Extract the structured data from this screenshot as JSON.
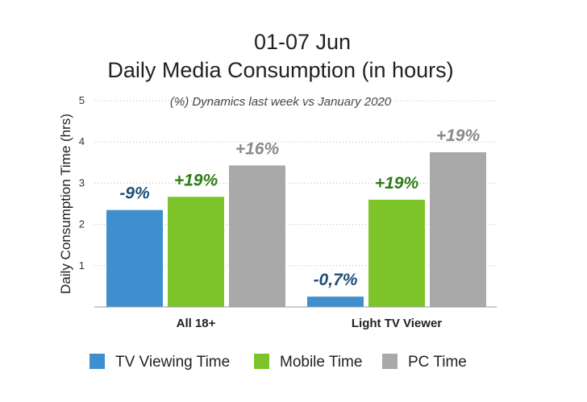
{
  "chart_data": {
    "type": "bar",
    "title_lines": [
      "01-07 Jun",
      "Daily Media Consumption (in hours)"
    ],
    "subtitle": "(%) Dynamics last week  vs January 2020",
    "ylabel": "Daily Consumption Time (hrs)",
    "xlabel": "",
    "ylim": [
      0,
      5
    ],
    "yticks": [
      1,
      2,
      3,
      4,
      5
    ],
    "grid": true,
    "legend_position": "bottom",
    "categories": [
      "All 18+",
      "Light TV Viewer"
    ],
    "series": [
      {
        "name": "TV Viewing Time",
        "color": "#3f8fcf",
        "values": [
          2.35,
          0.25
        ],
        "labels": [
          "-9%",
          "-0,7%"
        ],
        "label_color": "#1f4e79"
      },
      {
        "name": "Mobile Time",
        "color": "#7dc42a",
        "values": [
          2.67,
          2.6
        ],
        "labels": [
          "+19%",
          "+19%"
        ],
        "label_color": "#2e7d15"
      },
      {
        "name": "PC Time",
        "color": "#a9a9a9",
        "values": [
          3.43,
          3.75
        ],
        "labels": [
          "+16%",
          "+19%"
        ],
        "label_color": "#8a8a8a"
      }
    ]
  }
}
